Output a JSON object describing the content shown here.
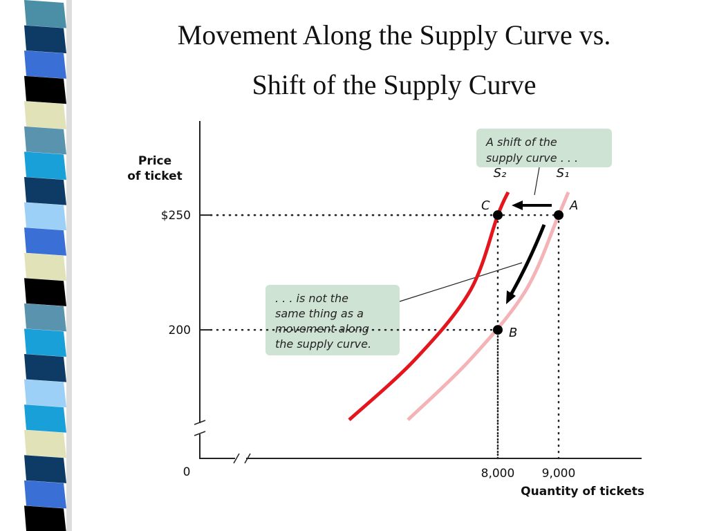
{
  "chart_data": {
    "type": "line",
    "title": [
      "Movement Along the Supply Curve vs.",
      "Shift of the Supply Curve"
    ],
    "y_label": [
      "Price",
      "of ticket"
    ],
    "x_label": "Quantity of tickets",
    "origin_label": "0",
    "xlim": [
      3102,
      10364
    ],
    "ylim": [
      144,
      291
    ],
    "xticks": [
      {
        "value": 8000,
        "label": "8,000"
      },
      {
        "value": 9000,
        "label": "9,000"
      }
    ],
    "yticks": [
      200,
      {
        "value": 250,
        "label": "$250"
      }
    ],
    "series": [
      {
        "name": "S₂",
        "color": "#e3161e",
        "x": [
          5557,
          6636,
          7545,
          8000,
          8170
        ],
        "values": [
          160.8,
          187,
          217,
          250,
          260
        ]
      },
      {
        "name": "S₁",
        "color": "#f4b3b6",
        "x": [
          6523,
          7545,
          8455,
          9000,
          9159
        ],
        "values": [
          160.8,
          187,
          217,
          250,
          260
        ]
      }
    ],
    "points": [
      {
        "label": "A",
        "x": 9000,
        "y": 250
      },
      {
        "label": "B",
        "x": 8000,
        "y": 200
      },
      {
        "label": "C",
        "x": 8000,
        "y": 250
      }
    ],
    "annotations": [
      [
        "A shift of the",
        "supply curve . . ."
      ],
      [
        ". . . is not the",
        "same thing as a",
        "movement along",
        "the supply curve."
      ]
    ]
  }
}
